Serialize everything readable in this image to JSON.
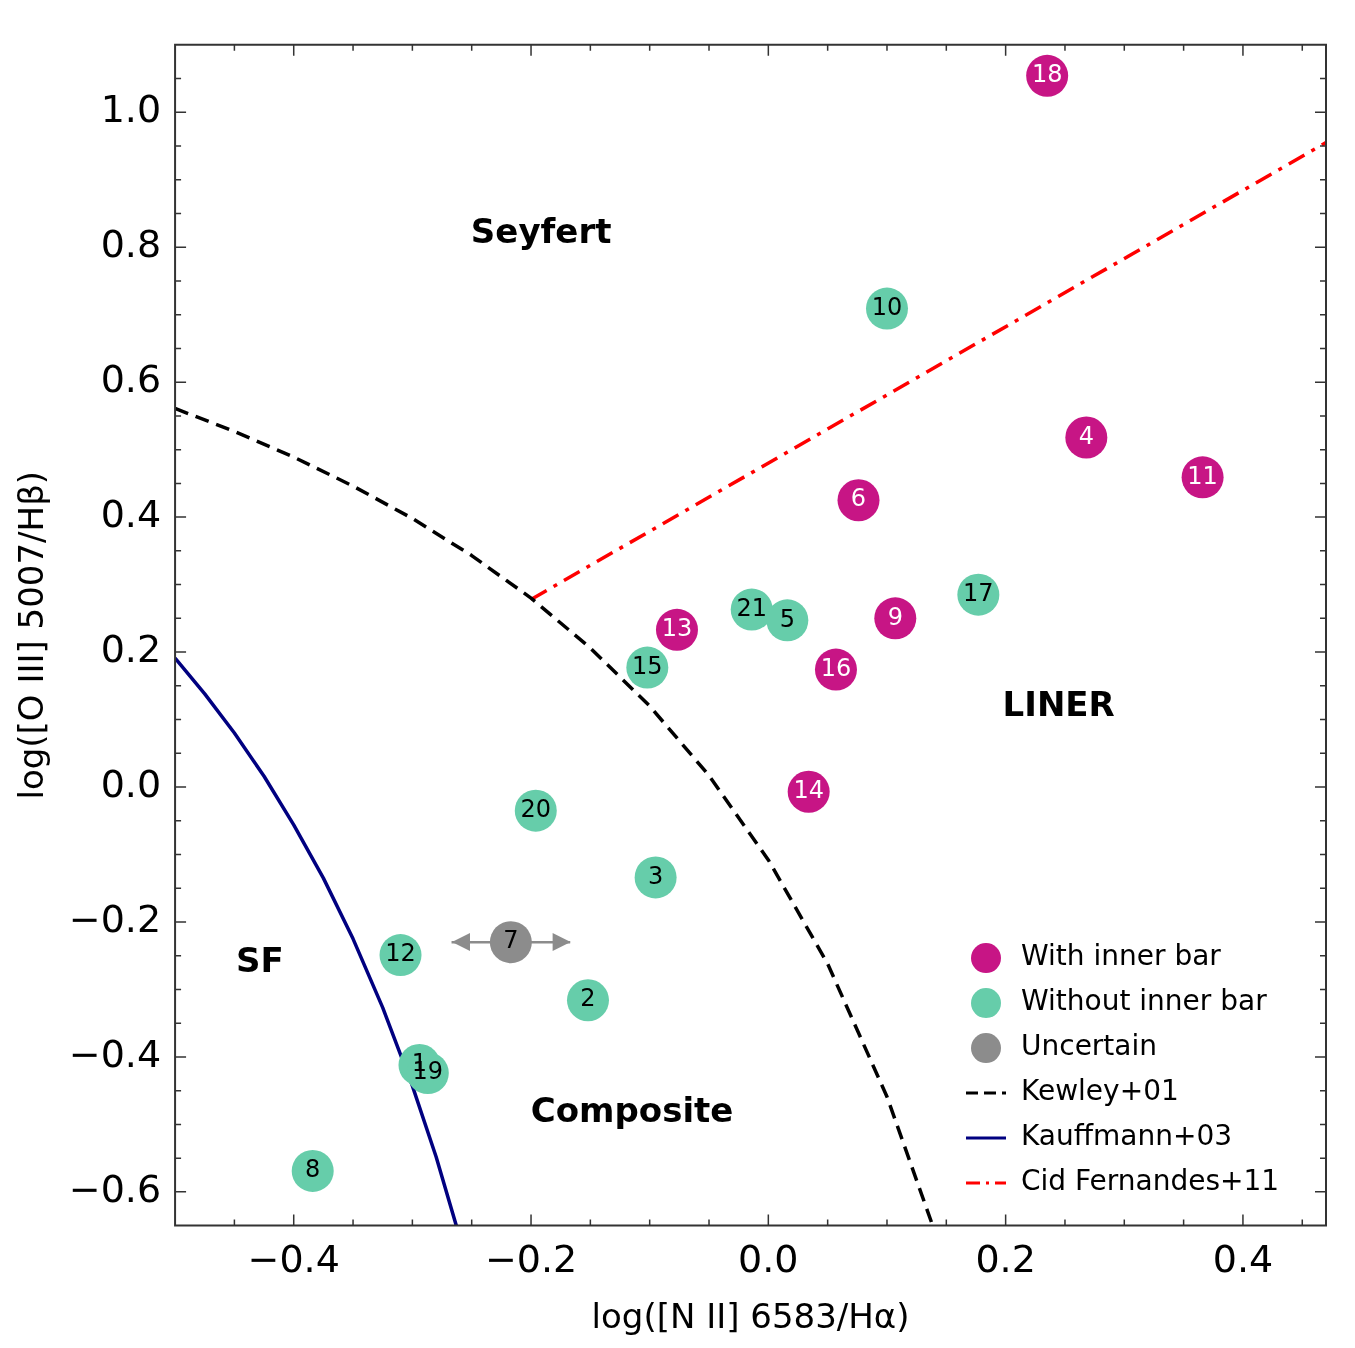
{
  "chart_data": {
    "type": "scatter",
    "xlabel": "log([N II] 6583/Hα)",
    "ylabel": "log([O III] 5007/Hβ)",
    "xlim": [
      -0.5,
      0.47
    ],
    "ylim": [
      -0.65,
      1.1
    ],
    "xticks": [
      {
        "value": -0.45,
        "label": null
      },
      {
        "value": -0.4,
        "label": "−0.4"
      },
      {
        "value": -0.35,
        "label": null
      },
      {
        "value": -0.3,
        "label": null
      },
      {
        "value": -0.25,
        "label": null
      },
      {
        "value": -0.2,
        "label": "−0.2"
      },
      {
        "value": -0.15,
        "label": null
      },
      {
        "value": -0.1,
        "label": null
      },
      {
        "value": -0.05,
        "label": null
      },
      {
        "value": 0,
        "label": "0.0"
      },
      {
        "value": 0.05,
        "label": null
      },
      {
        "value": 0.1,
        "label": null
      },
      {
        "value": 0.15,
        "label": null
      },
      {
        "value": 0.2,
        "label": "0.2"
      },
      {
        "value": 0.25,
        "label": null
      },
      {
        "value": 0.3,
        "label": null
      },
      {
        "value": 0.35,
        "label": null
      },
      {
        "value": 0.4,
        "label": "0.4"
      },
      {
        "value": 0.45,
        "label": null
      }
    ],
    "yticks": [
      {
        "value": -0.6,
        "label": "−0.6"
      },
      {
        "value": -0.55,
        "label": null
      },
      {
        "value": -0.5,
        "label": null
      },
      {
        "value": -0.45,
        "label": null
      },
      {
        "value": -0.4,
        "label": "−0.4"
      },
      {
        "value": -0.35,
        "label": null
      },
      {
        "value": -0.3,
        "label": null
      },
      {
        "value": -0.25,
        "label": null
      },
      {
        "value": -0.2,
        "label": "−0.2"
      },
      {
        "value": -0.15,
        "label": null
      },
      {
        "value": -0.1,
        "label": null
      },
      {
        "value": -0.05,
        "label": null
      },
      {
        "value": 0,
        "label": "0.0"
      },
      {
        "value": 0.05,
        "label": null
      },
      {
        "value": 0.1,
        "label": null
      },
      {
        "value": 0.15,
        "label": null
      },
      {
        "value": 0.2,
        "label": "0.2"
      },
      {
        "value": 0.25,
        "label": null
      },
      {
        "value": 0.3,
        "label": null
      },
      {
        "value": 0.35,
        "label": null
      },
      {
        "value": 0.4,
        "label": "0.4"
      },
      {
        "value": 0.45,
        "label": null
      },
      {
        "value": 0.5,
        "label": null
      },
      {
        "value": 0.55,
        "label": null
      },
      {
        "value": 0.6,
        "label": "0.6"
      },
      {
        "value": 0.65,
        "label": null
      },
      {
        "value": 0.7,
        "label": null
      },
      {
        "value": 0.75,
        "label": null
      },
      {
        "value": 0.8,
        "label": "0.8"
      },
      {
        "value": 0.85,
        "label": null
      },
      {
        "value": 0.9,
        "label": null
      },
      {
        "value": 0.95,
        "label": null
      },
      {
        "value": 1.0,
        "label": "1.0"
      },
      {
        "value": 1.05,
        "label": null
      }
    ],
    "grid": false,
    "legend": "bottom right",
    "marker": "circle",
    "series": [
      {
        "name": "With inner bar",
        "type": "scatter",
        "color": "#c71585",
        "x": [
          0.235,
          0.268,
          0.366,
          0.076,
          0.107,
          -0.077,
          0.057,
          0.034
        ],
        "values": [
          1.054,
          0.518,
          0.459,
          0.425,
          0.25,
          0.233,
          0.174,
          -0.007
        ]
      },
      {
        "name": "Without inner bar",
        "type": "scatter",
        "color": "#66cdaa",
        "x": [
          0.1,
          0.177,
          -0.014,
          0.016,
          -0.102,
          -0.196,
          -0.095,
          -0.31,
          -0.152,
          -0.294,
          -0.287,
          -0.384
        ],
        "values": [
          0.709,
          0.285,
          0.263,
          0.247,
          0.177,
          -0.035,
          -0.134,
          -0.249,
          -0.316,
          -0.412,
          -0.424,
          -0.569
        ]
      },
      {
        "name": "Uncertain",
        "type": "scatter",
        "color": "#8c8c8c",
        "x": [
          -0.217
        ],
        "values": [
          -0.23
        ],
        "xerrors": [
          0.05
        ]
      },
      {
        "name": "Kewley+01",
        "type": "line",
        "marker": "none",
        "line_style": "dashed",
        "color": "#000000",
        "x": [
          -0.5,
          -0.45,
          -0.4,
          -0.35,
          -0.3,
          -0.25,
          -0.2,
          -0.15,
          -0.1,
          -0.05,
          0,
          0.05,
          0.1,
          0.1385
        ],
        "values": [
          0.561,
          0.527,
          0.489,
          0.446,
          0.398,
          0.343,
          0.28,
          0.206,
          0.12,
          0.017,
          -0.108,
          -0.262,
          -0.459,
          -0.65
        ]
      },
      {
        "name": "Kauffmann+03",
        "type": "line",
        "marker": "none",
        "line_style": "solid",
        "color": "#000080",
        "x": [
          -0.5,
          -0.475,
          -0.45,
          -0.425,
          -0.4,
          -0.375,
          -0.35,
          -0.325,
          -0.3,
          -0.28,
          -0.263
        ],
        "values": [
          0.191,
          0.138,
          0.08,
          0.016,
          -0.056,
          -0.135,
          -0.225,
          -0.327,
          -0.443,
          -0.548,
          -0.65
        ]
      },
      {
        "name": "Cid Fernandes+11",
        "type": "line",
        "marker": "none",
        "line_style": "dashdot",
        "color": "#ff0000",
        "x": [
          -0.2,
          0.47
        ],
        "values": [
          0.278,
          0.955
        ]
      }
    ],
    "annotations": [
      "Seyfert",
      "LINER",
      "SF",
      "Composite",
      {
        "text": "18",
        "x": 0.235,
        "y": 1.054
      },
      {
        "text": "4",
        "x": 0.268,
        "y": 0.518
      },
      {
        "text": "11",
        "x": 0.366,
        "y": 0.459
      },
      {
        "text": "6",
        "x": 0.076,
        "y": 0.425
      },
      {
        "text": "9",
        "x": 0.107,
        "y": 0.25
      },
      {
        "text": "13",
        "x": -0.077,
        "y": 0.233
      },
      {
        "text": "16",
        "x": 0.057,
        "y": 0.174
      },
      {
        "text": "14",
        "x": 0.034,
        "y": -0.007
      },
      {
        "text": "10",
        "x": 0.1,
        "y": 0.709
      },
      {
        "text": "17",
        "x": 0.177,
        "y": 0.285
      },
      {
        "text": "21",
        "x": -0.014,
        "y": 0.263
      },
      {
        "text": "5",
        "x": 0.016,
        "y": 0.247
      },
      {
        "text": "15",
        "x": -0.102,
        "y": 0.177
      },
      {
        "text": "20",
        "x": -0.196,
        "y": -0.035
      },
      {
        "text": "3",
        "x": -0.095,
        "y": -0.134
      },
      {
        "text": "12",
        "x": -0.31,
        "y": -0.249
      },
      {
        "text": "2",
        "x": -0.152,
        "y": -0.316
      },
      {
        "text": "1",
        "x": -0.294,
        "y": -0.412
      },
      {
        "text": "19",
        "x": -0.287,
        "y": -0.424
      },
      {
        "text": "8",
        "x": -0.384,
        "y": -0.569
      },
      {
        "text": "7",
        "x": -0.217,
        "y": -0.23
      }
    ]
  }
}
